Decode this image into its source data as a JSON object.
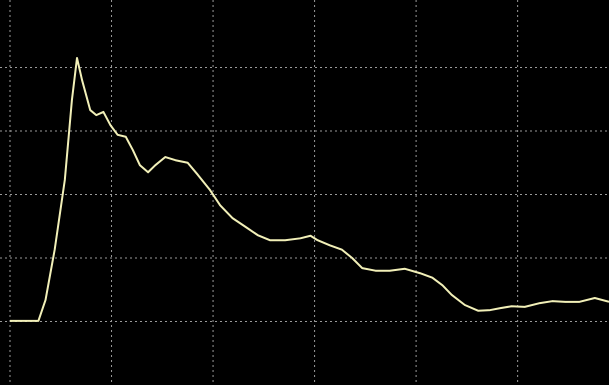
{
  "chart_data": {
    "type": "line",
    "color": "#f2f0b8",
    "grid": true,
    "x": [
      0,
      28,
      35,
      44,
      54,
      61,
      66,
      71,
      79,
      85,
      92,
      99,
      106,
      114,
      121,
      128,
      136,
      143,
      153,
      163,
      175,
      185,
      197,
      207,
      219,
      232,
      244,
      256,
      271,
      286,
      296,
      303,
      315,
      327,
      337,
      347,
      360,
      374,
      389,
      404,
      416,
      426,
      435,
      448,
      461,
      473,
      483,
      494,
      507,
      522,
      534,
      547,
      561,
      576,
      590
    ],
    "values": [
      1.01,
      1.01,
      1.34,
      2.13,
      3.23,
      4.49,
      5.15,
      4.8,
      4.33,
      4.25,
      4.3,
      4.09,
      3.94,
      3.91,
      3.7,
      3.46,
      3.35,
      3.46,
      3.59,
      3.54,
      3.5,
      3.31,
      3.07,
      2.83,
      2.63,
      2.49,
      2.36,
      2.28,
      2.28,
      2.31,
      2.35,
      2.28,
      2.2,
      2.13,
      2.0,
      1.84,
      1.8,
      1.8,
      1.83,
      1.76,
      1.69,
      1.57,
      1.42,
      1.26,
      1.17,
      1.18,
      1.21,
      1.24,
      1.23,
      1.29,
      1.32,
      1.31,
      1.31,
      1.37,
      1.31
    ],
    "xlim": [
      0,
      590
    ],
    "ylim": [
      0,
      6
    ],
    "xticks": [
      0,
      100,
      200,
      300,
      400,
      500
    ],
    "yticks": [
      1,
      2,
      3,
      4,
      5
    ]
  }
}
